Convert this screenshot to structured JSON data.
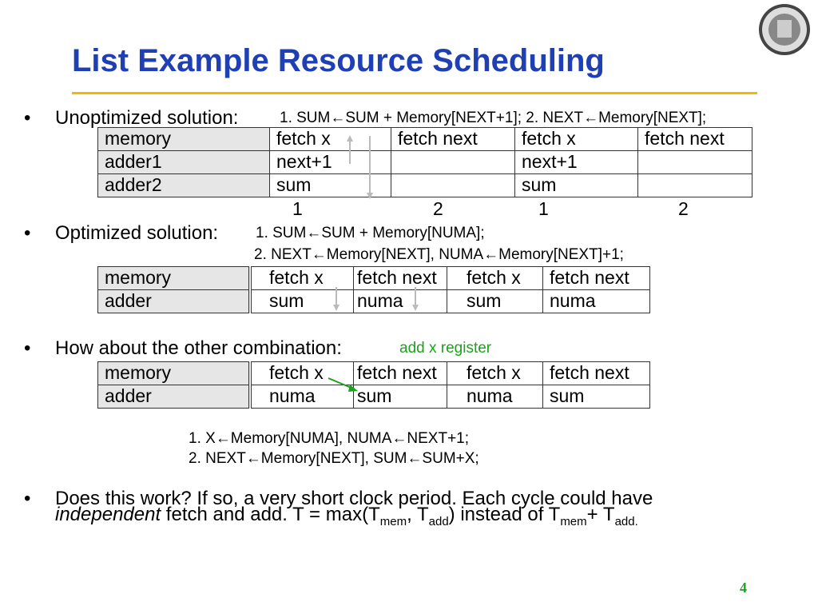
{
  "title": "List Example Resource Scheduling",
  "page_number": "4",
  "bullet1": {
    "lead": "Unoptimized solution: ",
    "code": "1. SUM←SUM + Memory[NEXT+1];  2. NEXT←Memory[NEXT];"
  },
  "table1": {
    "rows": [
      [
        "memory",
        "fetch x",
        "fetch next",
        "fetch x",
        "fetch next"
      ],
      [
        "adder1",
        "next+1",
        "",
        "next+1",
        ""
      ],
      [
        "adder2",
        "sum",
        "",
        "sum",
        ""
      ]
    ],
    "cycles": [
      "1",
      "2",
      "1",
      "2"
    ]
  },
  "bullet2": {
    "lead": "Optimized solution: ",
    "code1": "1. SUM←SUM + Memory[NUMA];",
    "code2": "2. NEXT←Memory[NEXT],  NUMA←Memory[NEXT]+1;"
  },
  "table2": {
    "rows": [
      [
        "memory",
        "fetch x",
        "fetch next",
        "fetch x",
        "fetch next"
      ],
      [
        "adder",
        "sum",
        "numa",
        "sum",
        "numa"
      ]
    ]
  },
  "bullet3": {
    "lead": "How about the other combination: ",
    "note": "add x register"
  },
  "table3": {
    "rows": [
      [
        "memory",
        "fetch x",
        "fetch next",
        "fetch x",
        "fetch next"
      ],
      [
        "adder",
        "numa",
        "sum",
        "numa",
        "sum"
      ]
    ]
  },
  "code3": {
    "line1": "1. X←Memory[NUMA],  NUMA←NEXT+1;",
    "line2": "2. NEXT←Memory[NEXT],  SUM←SUM+X;"
  },
  "bullet4": {
    "line1": "Does this work?  If so, a very short clock period.  Each cycle could have",
    "italic": "independent",
    "rest": " fetch and add.  T = max(T",
    "sub1": "mem",
    "comma": ", T",
    "sub2": "add",
    "tail": ") instead of T",
    "sub3": "mem",
    "plus": "+ T",
    "sub4": "add."
  },
  "colors": {
    "title": "#1f3fb5",
    "rule": "#f5b800",
    "accent": "#1aa31a"
  },
  "icons": [
    "university-seal-icon"
  ]
}
